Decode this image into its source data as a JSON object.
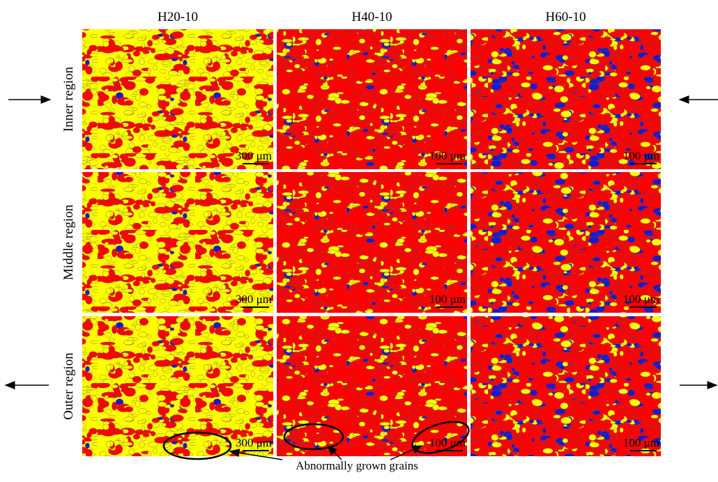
{
  "columns": [
    "H20-10",
    "H40-10",
    "H60-10"
  ],
  "rows": [
    "Inner region",
    "Middle region",
    "Outer region"
  ],
  "scale_bars": [
    [
      "300 μm",
      "100 μm",
      "100 μm"
    ],
    [
      "300 μm",
      "100 μm",
      "100 μm"
    ],
    [
      "300 μm",
      "100 μm",
      "100 μm"
    ]
  ],
  "annotation": "Abnormally grown grains"
}
